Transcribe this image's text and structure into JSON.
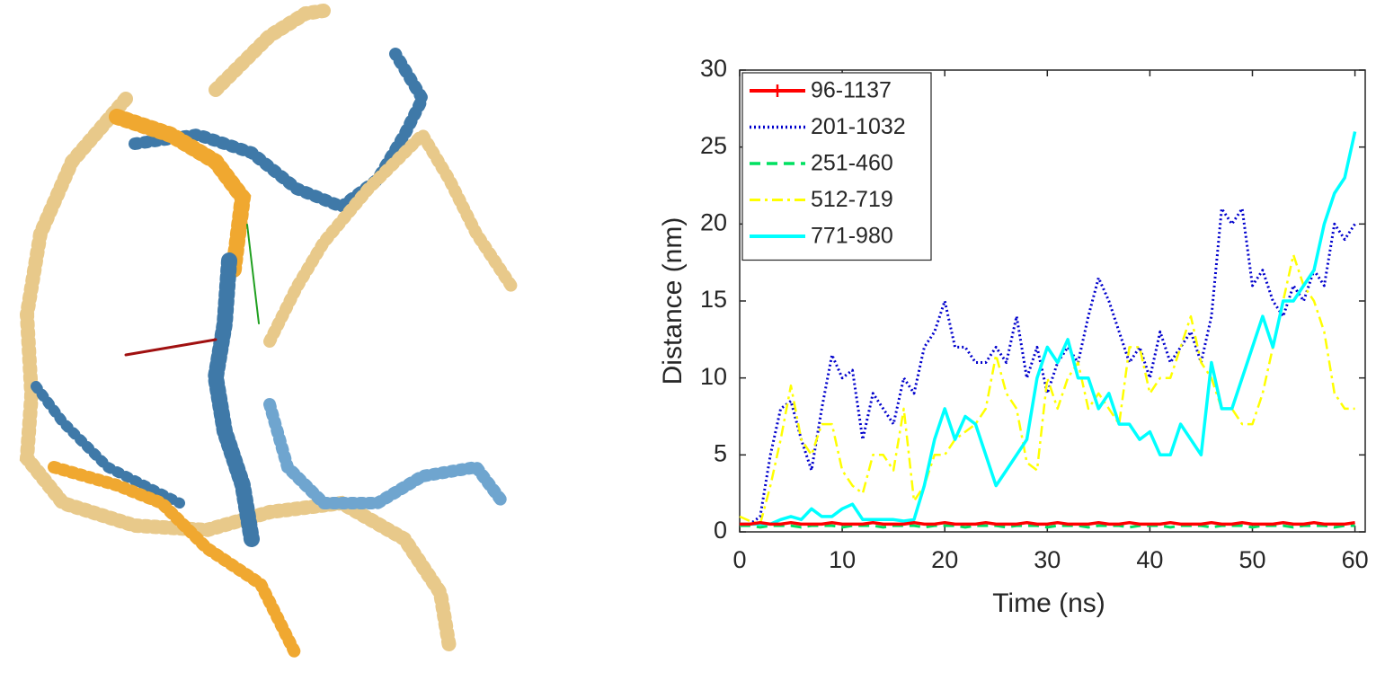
{
  "chart_data": {
    "type": "line",
    "xlabel": "Time (ns)",
    "ylabel": "Distance (nm)",
    "x": [
      0,
      1,
      2,
      3,
      4,
      5,
      6,
      7,
      8,
      9,
      10,
      11,
      12,
      13,
      14,
      15,
      16,
      17,
      18,
      19,
      20,
      21,
      22,
      23,
      24,
      25,
      26,
      27,
      28,
      29,
      30,
      31,
      32,
      33,
      34,
      35,
      36,
      37,
      38,
      39,
      40,
      41,
      42,
      43,
      44,
      45,
      46,
      47,
      48,
      49,
      50,
      51,
      52,
      53,
      54,
      55,
      56,
      57,
      58,
      59,
      60
    ],
    "xlim": [
      0,
      61
    ],
    "xticks": [
      0,
      10,
      20,
      30,
      40,
      50,
      60
    ],
    "ylim": [
      0,
      30
    ],
    "yticks": [
      0,
      5,
      10,
      15,
      20,
      25,
      30
    ],
    "legend": "upper left",
    "series": [
      {
        "name": "96-1137",
        "color": "#ff0000",
        "style": "solid",
        "marker": "+",
        "values": [
          0.5,
          0.5,
          0.6,
          0.5,
          0.5,
          0.6,
          0.5,
          0.5,
          0.5,
          0.6,
          0.5,
          0.5,
          0.5,
          0.6,
          0.5,
          0.5,
          0.5,
          0.6,
          0.5,
          0.5,
          0.6,
          0.5,
          0.5,
          0.5,
          0.6,
          0.5,
          0.5,
          0.5,
          0.6,
          0.5,
          0.5,
          0.6,
          0.5,
          0.5,
          0.5,
          0.6,
          0.5,
          0.5,
          0.6,
          0.5,
          0.5,
          0.5,
          0.6,
          0.5,
          0.5,
          0.5,
          0.6,
          0.5,
          0.5,
          0.6,
          0.5,
          0.5,
          0.5,
          0.6,
          0.5,
          0.5,
          0.6,
          0.5,
          0.5,
          0.5,
          0.6
        ]
      },
      {
        "name": "201-1032",
        "color": "#0000cc",
        "style": "dotted",
        "values": [
          0.5,
          0.5,
          1,
          5,
          8,
          8.5,
          6,
          4,
          8,
          11.5,
          10,
          10.5,
          6,
          9,
          8,
          7,
          10,
          9,
          12,
          13,
          15,
          12,
          12,
          11,
          11,
          12,
          11,
          14,
          10,
          12,
          9,
          11,
          12,
          11,
          14,
          16.5,
          15,
          13,
          11,
          12,
          10,
          13,
          11,
          12,
          13,
          11,
          14,
          21,
          20,
          21,
          16,
          17,
          15,
          14,
          16,
          15,
          17,
          16,
          20,
          19,
          20
        ]
      },
      {
        "name": "251-460",
        "color": "#00e060",
        "style": "dashed",
        "values": [
          0.4,
          0.4,
          0.3,
          0.4,
          0.4,
          0.4,
          0.3,
          0.4,
          0.4,
          0.4,
          0.3,
          0.4,
          0.4,
          0.4,
          0.3,
          0.4,
          0.4,
          0.4,
          0.3,
          0.4,
          0.4,
          0.4,
          0.3,
          0.4,
          0.4,
          0.4,
          0.3,
          0.4,
          0.4,
          0.4,
          0.3,
          0.4,
          0.4,
          0.4,
          0.3,
          0.4,
          0.4,
          0.4,
          0.3,
          0.4,
          0.4,
          0.4,
          0.3,
          0.4,
          0.4,
          0.4,
          0.3,
          0.4,
          0.4,
          0.4,
          0.3,
          0.4,
          0.4,
          0.4,
          0.3,
          0.4,
          0.4,
          0.4,
          0.3,
          0.4,
          0.4
        ]
      },
      {
        "name": "512-719",
        "color": "#ffff00",
        "style": "dashdot",
        "values": [
          1,
          0.7,
          0.5,
          3,
          6,
          9.5,
          6,
          5,
          7,
          7,
          4,
          3,
          2.5,
          5,
          5,
          4,
          8,
          2,
          3,
          5,
          5,
          6,
          6.5,
          7,
          8,
          11.5,
          9,
          8,
          4.5,
          4,
          10,
          8,
          10,
          11,
          8,
          9,
          8,
          7,
          12,
          12,
          9,
          10,
          10,
          12,
          14,
          11,
          10,
          8,
          8,
          7,
          7,
          9,
          12,
          15,
          18,
          16,
          15,
          13,
          9,
          8,
          8
        ]
      },
      {
        "name": "771-980",
        "color": "#00ffff",
        "style": "solid",
        "values": [
          0.5,
          0.5,
          0.5,
          0.5,
          0.8,
          1,
          0.8,
          1.5,
          1,
          1,
          1.5,
          1.8,
          0.8,
          0.8,
          0.8,
          0.8,
          0.7,
          0.8,
          3,
          6,
          8,
          6,
          7.5,
          7,
          5,
          3,
          4,
          5,
          6,
          10,
          12,
          11,
          12.5,
          10,
          10,
          8,
          9,
          7,
          7,
          6,
          6.5,
          5,
          5,
          7,
          6,
          5,
          11,
          8,
          8,
          10,
          12,
          14,
          12,
          15,
          15,
          16,
          17,
          20,
          22,
          23,
          26
        ]
      }
    ]
  }
}
